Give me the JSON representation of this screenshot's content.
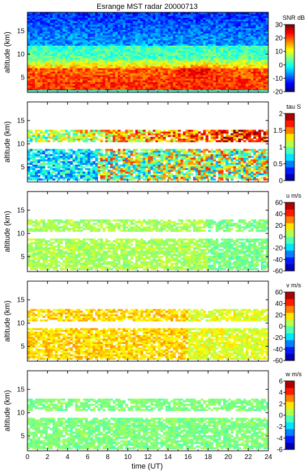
{
  "title": "Esrange MST radar 20000713",
  "xlabel": "time (UT)",
  "chart_data": {
    "type": "heatmap",
    "title": "Esrange MST radar 20000713",
    "xlabel": "time (UT)",
    "xlim": [
      0,
      24
    ],
    "xticks": [
      0,
      2,
      4,
      6,
      8,
      10,
      12,
      14,
      16,
      18,
      20,
      22,
      24
    ],
    "panels": [
      {
        "id": "snr",
        "ylabel": "altitude (km)",
        "ylim": [
          1.8,
          19
        ],
        "yticks": [
          5,
          10,
          15
        ],
        "colorbar_label": "SNR dB",
        "colorbar_range": [
          -20,
          30
        ],
        "colorbar_ticks": [
          -20,
          -10,
          0,
          10,
          20,
          30
        ],
        "profile_description_km": {
          "2-7": "20 to 25 dB",
          "7-9": "5 to 15 dB",
          "9-12": "0 to 5 dB",
          "12-19": "-12 to -5 dB"
        }
      },
      {
        "id": "tau",
        "ylabel": "altitude (km)",
        "ylim": [
          1.8,
          19
        ],
        "yticks": [
          5,
          10,
          15
        ],
        "colorbar_label": "tau S",
        "colorbar_range": [
          0,
          2
        ],
        "colorbar_ticks": [
          0,
          0.5,
          1,
          1.5,
          2
        ],
        "data_layers_km": [
          [
            2,
            9
          ],
          [
            10.5,
            13
          ]
        ]
      },
      {
        "id": "u",
        "ylabel": "altitude (km)",
        "ylim": [
          1.8,
          19
        ],
        "yticks": [
          5,
          10,
          15
        ],
        "colorbar_label": "u m/s",
        "colorbar_range": [
          -60,
          60
        ],
        "colorbar_ticks": [
          -60,
          -40,
          -20,
          0,
          20,
          40,
          60
        ],
        "typical_value_ms": 5
      },
      {
        "id": "v",
        "ylabel": "altitude (km)",
        "ylim": [
          1.8,
          19
        ],
        "yticks": [
          5,
          10,
          15
        ],
        "colorbar_label": "v m/s",
        "colorbar_range": [
          -60,
          60
        ],
        "colorbar_ticks": [
          -60,
          -40,
          -20,
          0,
          20,
          40,
          60
        ],
        "typical_value_ms": 20
      },
      {
        "id": "w",
        "ylabel": "altitude (km)",
        "ylim": [
          1.8,
          19
        ],
        "yticks": [
          5,
          10,
          15
        ],
        "colorbar_label": "w m/s",
        "colorbar_range": [
          -6,
          6
        ],
        "colorbar_ticks": [
          -6,
          -4,
          -2,
          0,
          2,
          4,
          6
        ],
        "typical_value_ms": 0
      }
    ]
  }
}
